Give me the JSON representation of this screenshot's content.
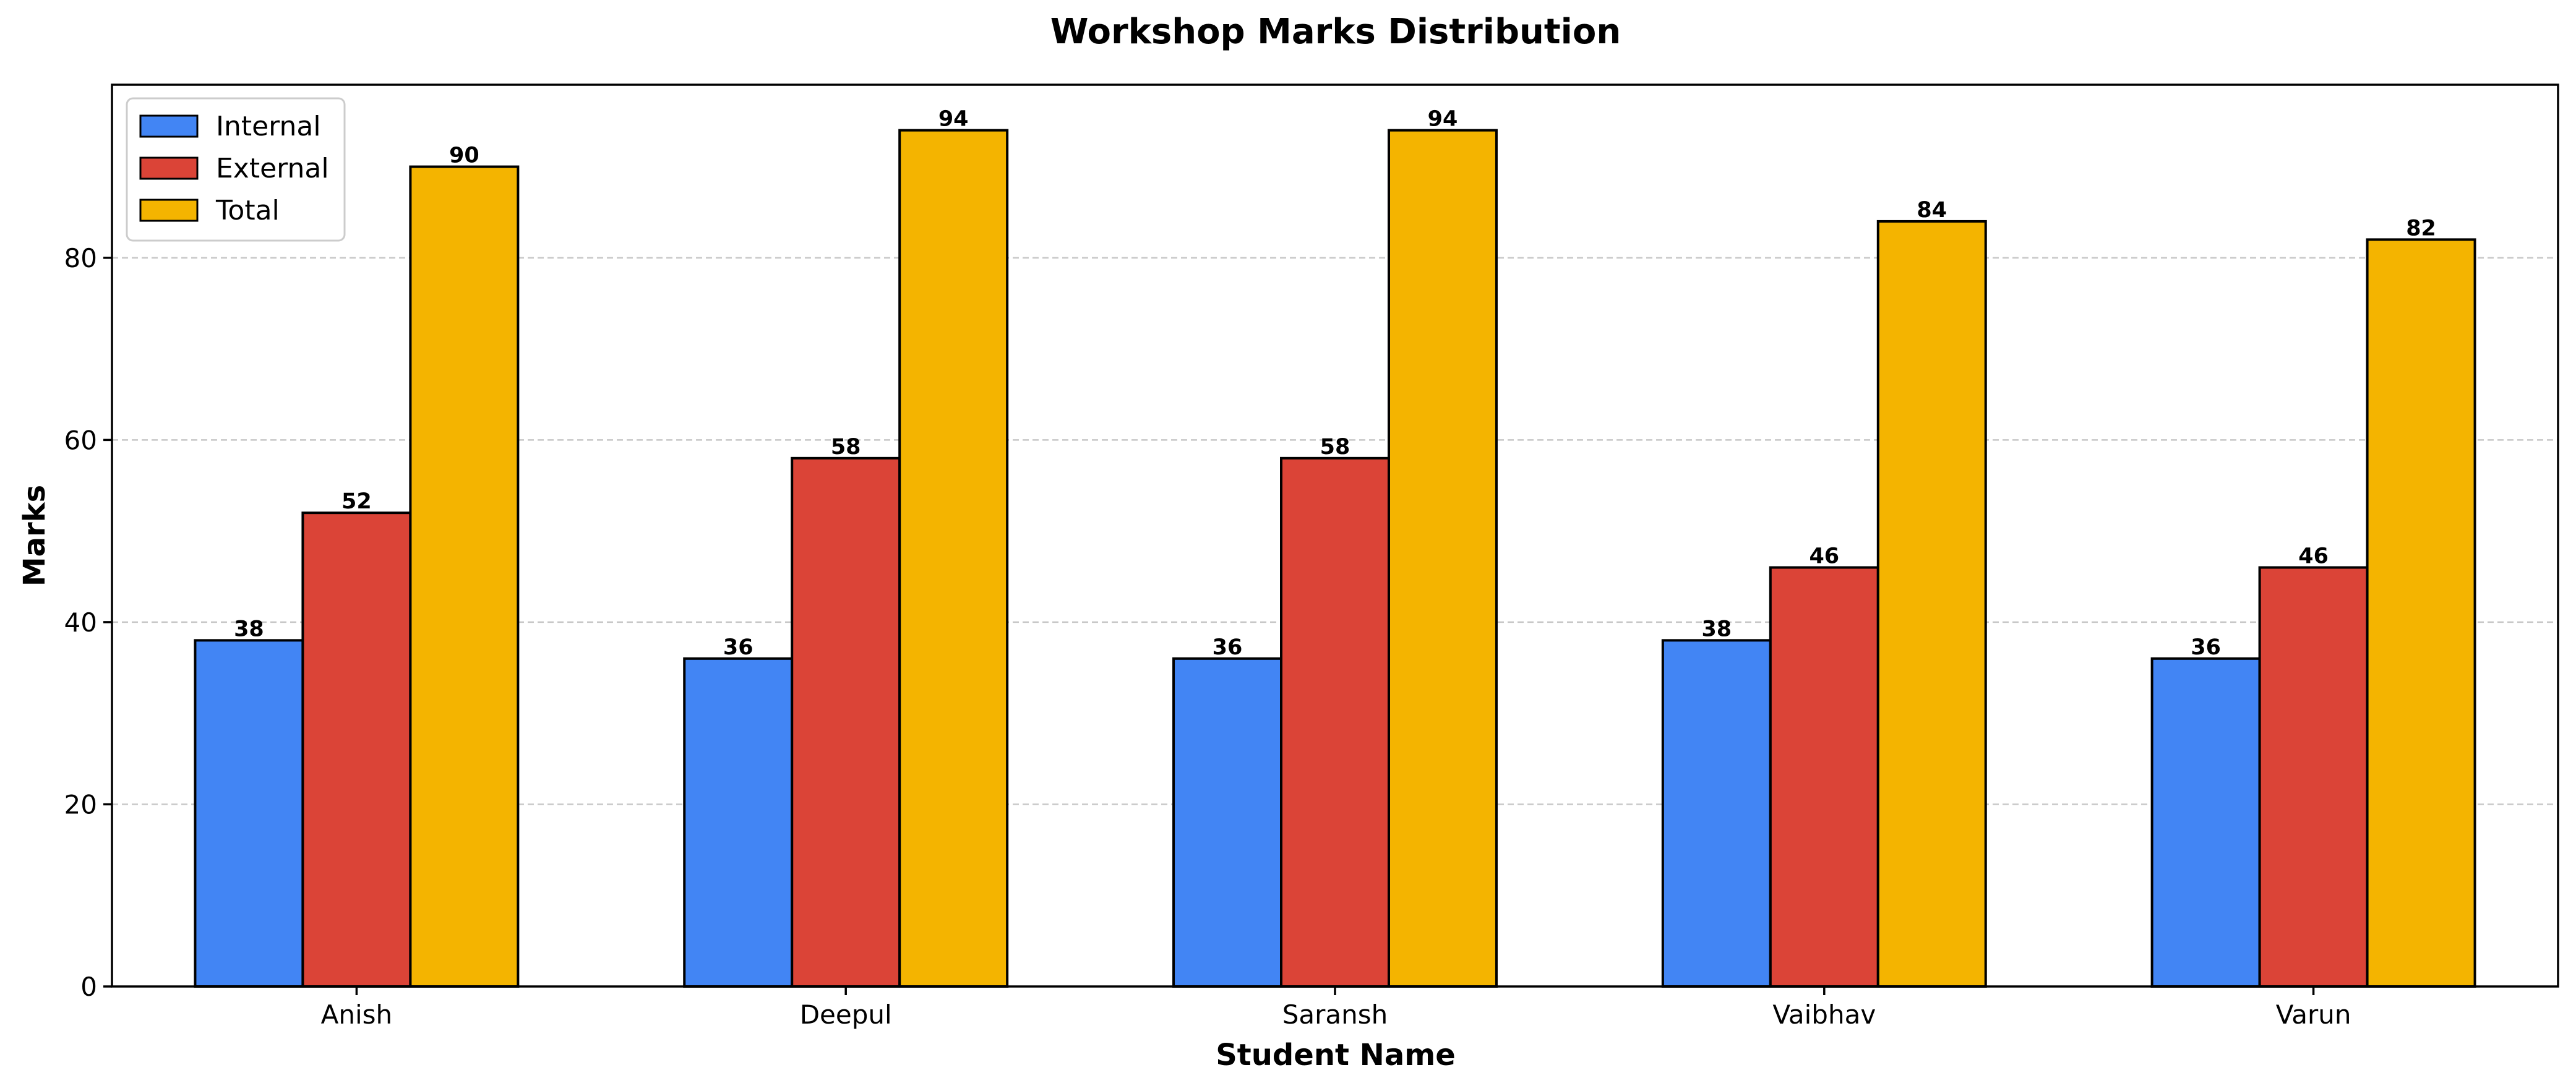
{
  "chart_data": {
    "type": "bar",
    "title": "Workshop Marks Distribution",
    "xlabel": "Student Name",
    "ylabel": "Marks",
    "categories": [
      "Anish",
      "Deepul",
      "Saransh",
      "Vaibhav",
      "Varun"
    ],
    "series": [
      {
        "name": "Internal",
        "color": "#4285f4",
        "values": [
          38,
          36,
          36,
          38,
          36
        ]
      },
      {
        "name": "External",
        "color": "#db4437",
        "values": [
          52,
          58,
          58,
          46,
          46
        ]
      },
      {
        "name": "Total",
        "color": "#f4b400",
        "values": [
          90,
          94,
          94,
          84,
          82
        ]
      }
    ],
    "ylim": [
      0,
      99
    ],
    "yticks": [
      0,
      20,
      40,
      60,
      80
    ],
    "grid": "y-dashed",
    "legend_position": "top-left"
  }
}
